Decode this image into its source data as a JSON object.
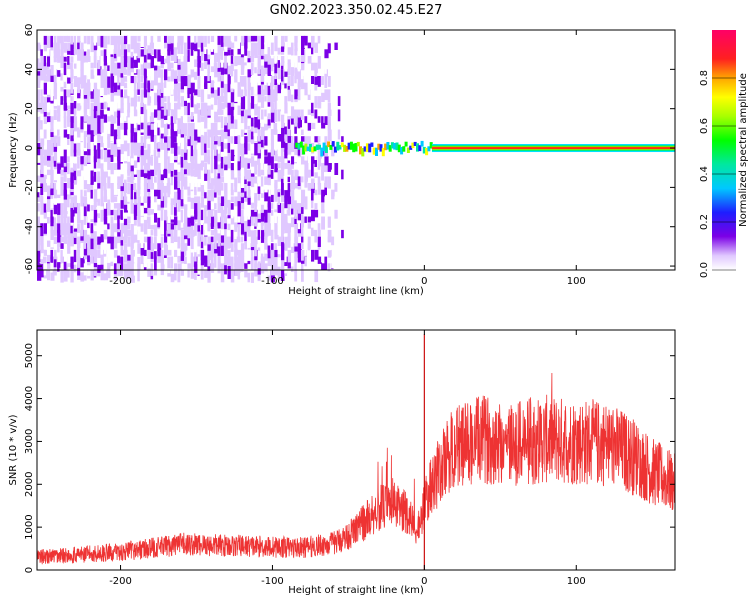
{
  "title": "GN02.2023.350.02.45.E27",
  "chart_data": [
    {
      "type": "heatmap",
      "xlabel": "Height of straight line (km)",
      "ylabel": "Frequency (Hz)",
      "xlim": [
        -255,
        165
      ],
      "ylim": [
        -62,
        60
      ],
      "xticks": [
        -200,
        -100,
        0,
        100
      ],
      "yticks": [
        -60,
        -40,
        -20,
        0,
        20,
        40,
        60
      ],
      "grid": false,
      "description_features": {
        "noise_band": {
          "x_range": [
            -255,
            -55
          ],
          "y_range": [
            -62,
            60
          ],
          "dominant_amplitude": 0.2
        },
        "transition": {
          "x_range": [
            -85,
            5
          ],
          "y_center": 0
        },
        "signal_line": {
          "x_range": [
            5,
            165
          ],
          "y_center": 0,
          "amplitude": 1.0
        }
      },
      "colorbar": {
        "label": "Normalized spectral amplitude",
        "ticks": [
          0.0,
          0.2,
          0.4,
          0.6,
          0.8
        ],
        "range": [
          0,
          1
        ]
      }
    },
    {
      "type": "line",
      "xlabel": "Height of straight line (km)",
      "ylabel": "SNR (10 * v/v)",
      "xlim": [
        -255,
        165
      ],
      "ylim": [
        0,
        5600
      ],
      "xticks": [
        -200,
        -100,
        0,
        100
      ],
      "yticks": [
        0,
        1000,
        2000,
        3000,
        4000,
        5000
      ],
      "grid": false,
      "color": "#ee3333",
      "profile": {
        "x": [
          -255,
          -200,
          -160,
          -120,
          -80,
          -60,
          -50,
          -40,
          -30,
          -20,
          -10,
          -5,
          0,
          5,
          10,
          20,
          40,
          60,
          80,
          100,
          120,
          130,
          140,
          150,
          165
        ],
        "y": [
          300,
          420,
          600,
          560,
          520,
          620,
          800,
          1100,
          1450,
          1500,
          1300,
          900,
          1500,
          2000,
          2300,
          2900,
          3050,
          2950,
          3050,
          3000,
          2950,
          2800,
          2600,
          2300,
          2000
        ]
      },
      "spike": {
        "x": 0,
        "y": 5500
      }
    }
  ]
}
